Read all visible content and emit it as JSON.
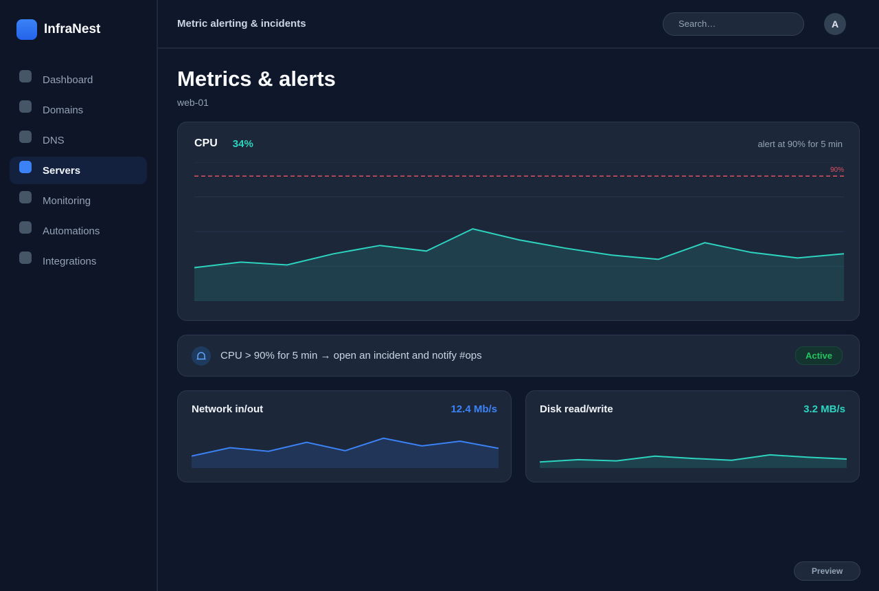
{
  "app": {
    "name": "InfraNest"
  },
  "sidebar": {
    "items": [
      {
        "label": "Dashboard",
        "active": false
      },
      {
        "label": "Domains",
        "active": false
      },
      {
        "label": "DNS",
        "active": false
      },
      {
        "label": "Servers",
        "active": true
      },
      {
        "label": "Monitoring",
        "active": false
      },
      {
        "label": "Automations",
        "active": false
      },
      {
        "label": "Integrations",
        "active": false
      }
    ]
  },
  "topbar": {
    "title": "Metric alerting & incidents",
    "search_placeholder": "Search…",
    "avatar_initial": "A"
  },
  "page": {
    "title": "Metrics & alerts",
    "subtitle": "web-01"
  },
  "cpu": {
    "label": "CPU",
    "value": "34%",
    "rule": "alert at 90% for 5 min",
    "threshold_label": "90%",
    "threshold": 90,
    "series": [
      24,
      28,
      26,
      34,
      40,
      36,
      52,
      44,
      38,
      33,
      30,
      42,
      35,
      31,
      34
    ],
    "ymax": 100,
    "colors": {
      "line": "#2dd4bf",
      "threshold": "#e05262"
    }
  },
  "alert": {
    "text": "CPU > 90% for 5 min → open an incident and notify #ops",
    "status": "Active",
    "icon": "bell-icon"
  },
  "network": {
    "title": "Network in/out",
    "value": "12.4 Mb/s",
    "color": "#3b82f6",
    "series": [
      20,
      34,
      28,
      43,
      29,
      50,
      37,
      45,
      33
    ]
  },
  "disk": {
    "title": "Disk read/write",
    "value": "3.2 MB/s",
    "color": "#2dd4bf",
    "series": [
      10,
      14,
      12,
      20,
      16,
      13,
      22,
      18,
      15
    ]
  },
  "footer": {
    "preview_label": "Preview"
  }
}
